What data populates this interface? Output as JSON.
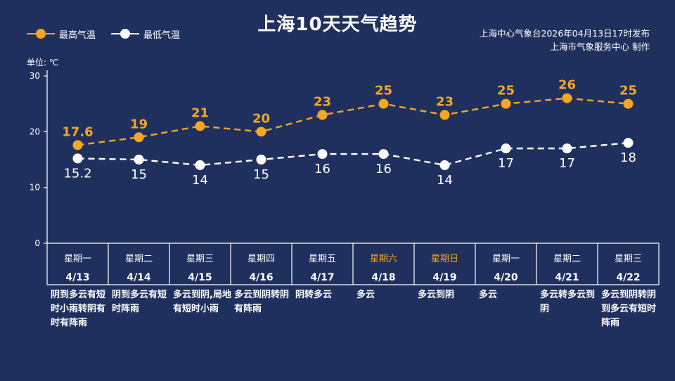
{
  "title": "上海10天天气趋势",
  "legend": {
    "high_label": "最高气温",
    "low_label": "最低气温"
  },
  "source": {
    "line1": "上海中心气象台2026年04月13日17时发布",
    "line2": "上海市气象服务中心  制作"
  },
  "unit_label": "单位: ℃",
  "colors": {
    "background": "#20305e",
    "high": "#f5a623",
    "low": "#ffffff",
    "weekend": "#f5a623"
  },
  "chart_data": {
    "type": "line",
    "title": "上海10天天气趋势",
    "ylabel": "单位: ℃",
    "ylim": [
      0,
      30
    ],
    "yticks": [
      0,
      10,
      20,
      30
    ],
    "grid": false,
    "legend_position": "top-left",
    "categories": [
      "4/13",
      "4/14",
      "4/15",
      "4/16",
      "4/17",
      "4/18",
      "4/19",
      "4/20",
      "4/21",
      "4/22"
    ],
    "weekdays": [
      "星期一",
      "星期二",
      "星期三",
      "星期四",
      "星期五",
      "星期六",
      "星期日",
      "星期一",
      "星期二",
      "星期三"
    ],
    "weekend_flags": [
      false,
      false,
      false,
      false,
      false,
      true,
      true,
      false,
      false,
      false
    ],
    "series": [
      {
        "name": "最高气温",
        "values": [
          17.6,
          19,
          21,
          20,
          23,
          25,
          23,
          25,
          26,
          25
        ],
        "labels": [
          "17.6",
          "19",
          "21",
          "20",
          "23",
          "25",
          "23",
          "25",
          "26",
          "25"
        ]
      },
      {
        "name": "最低气温",
        "values": [
          15.2,
          15,
          14,
          15,
          16,
          16,
          14,
          17,
          17,
          18
        ],
        "labels": [
          "15.2",
          "15",
          "14",
          "15",
          "16",
          "16",
          "14",
          "17",
          "17",
          "18"
        ]
      }
    ],
    "weather": [
      "阴到多云有短时小雨转阴有时有阵雨",
      "阴到多云有短时阵雨",
      "多云到阴,局地有短时小雨",
      "多云到阴转阴有阵雨",
      "阴转多云",
      "多云",
      "多云到阴",
      "多云",
      "多云转多云到阴",
      "多云到阴转阴到多云有短时阵雨"
    ]
  }
}
